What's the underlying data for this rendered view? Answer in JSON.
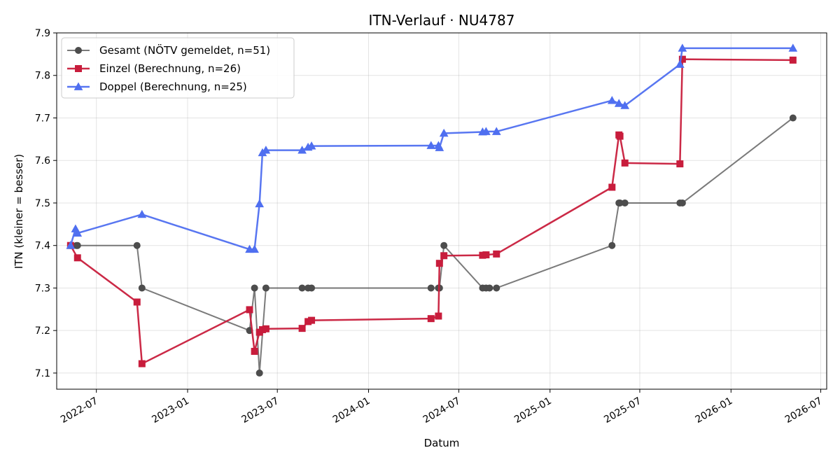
{
  "chart_data": {
    "type": "line",
    "title": "ITN-Verlauf · NU4787",
    "xlabel": "Datum",
    "ylabel": "ITN  (kleiner = besser)",
    "x_axis": "date",
    "xlim": [
      "2022-04-12",
      "2026-07-13"
    ],
    "ylim": [
      7.062,
      7.9
    ],
    "x_ticks": [
      "2022-07-01",
      "2023-01-01",
      "2023-07-01",
      "2024-01-01",
      "2024-07-01",
      "2025-01-01",
      "2025-07-01",
      "2026-01-01",
      "2026-07-01"
    ],
    "x_tick_labels": [
      "2022-07",
      "2023-01",
      "2023-07",
      "2024-01",
      "2024-07",
      "2025-01",
      "2025-07",
      "2026-01",
      "2026-07"
    ],
    "y_ticks": [
      7.1,
      7.2,
      7.3,
      7.4,
      7.5,
      7.6,
      7.7,
      7.8,
      7.9
    ],
    "y_tick_labels": [
      "7.1",
      "7.2",
      "7.3",
      "7.4",
      "7.5",
      "7.6",
      "7.7",
      "7.8",
      "7.9"
    ],
    "grid": true,
    "legend_position": "upper-left",
    "series": [
      {
        "name": "Gesamt (NÖTV gemeldet, n=51)",
        "color": "#4d4d4d",
        "marker": "circle",
        "x": [
          "2022-05-10",
          "2022-05-22",
          "2022-05-24",
          "2022-09-21",
          "2022-10-01",
          "2023-05-06",
          "2023-05-16",
          "2023-05-26",
          "2023-06-08",
          "2023-08-20",
          "2023-09-01",
          "2023-09-08",
          "2024-05-06",
          "2024-05-21",
          "2024-05-23",
          "2024-06-01",
          "2024-08-18",
          "2024-08-25",
          "2024-09-01",
          "2024-09-15",
          "2025-05-06",
          "2025-05-20",
          "2025-05-22",
          "2025-06-01",
          "2025-09-20",
          "2025-09-25",
          "2026-05-06"
        ],
        "y": [
          7.4,
          7.4,
          7.4,
          7.4,
          7.3,
          7.2,
          7.3,
          7.1,
          7.3,
          7.3,
          7.3,
          7.3,
          7.3,
          7.3,
          7.3,
          7.4,
          7.3,
          7.3,
          7.3,
          7.3,
          7.4,
          7.5,
          7.5,
          7.5,
          7.5,
          7.5,
          7.7
        ]
      },
      {
        "name": "Einzel (Berechnung, n=26)",
        "color": "#c81d3c",
        "marker": "square",
        "x": [
          "2022-05-10",
          "2022-05-24",
          "2022-09-21",
          "2022-10-01",
          "2023-05-06",
          "2023-05-16",
          "2023-05-26",
          "2023-06-01",
          "2023-06-08",
          "2023-08-20",
          "2023-09-01",
          "2023-09-08",
          "2024-05-06",
          "2024-05-21",
          "2024-05-23",
          "2024-06-01",
          "2024-08-18",
          "2024-08-25",
          "2024-09-15",
          "2025-05-06",
          "2025-05-20",
          "2025-05-22",
          "2025-06-01",
          "2025-09-20",
          "2025-09-25",
          "2026-05-06"
        ],
        "y": [
          7.4,
          7.371,
          7.267,
          7.122,
          7.249,
          7.151,
          7.196,
          7.202,
          7.204,
          7.205,
          7.221,
          7.224,
          7.228,
          7.234,
          7.358,
          7.376,
          7.377,
          7.378,
          7.38,
          7.537,
          7.66,
          7.657,
          7.594,
          7.592,
          7.838,
          7.836
        ]
      },
      {
        "name": "Doppel (Berechnung, n=25)",
        "color": "#4f6ff0",
        "marker": "triangle",
        "x": [
          "2022-05-10",
          "2022-05-20",
          "2022-05-24",
          "2022-10-01",
          "2023-05-06",
          "2023-05-16",
          "2023-05-26",
          "2023-06-01",
          "2023-06-08",
          "2023-08-20",
          "2023-09-01",
          "2023-09-08",
          "2024-05-06",
          "2024-05-21",
          "2024-05-23",
          "2024-06-01",
          "2024-08-18",
          "2024-08-25",
          "2024-09-15",
          "2025-05-06",
          "2025-05-20",
          "2025-06-01",
          "2025-09-20",
          "2025-09-25",
          "2026-05-06"
        ],
        "y": [
          7.4,
          7.439,
          7.429,
          7.473,
          7.391,
          7.391,
          7.498,
          7.618,
          7.624,
          7.624,
          7.631,
          7.634,
          7.635,
          7.635,
          7.63,
          7.664,
          7.667,
          7.668,
          7.668,
          7.741,
          7.734,
          7.729,
          7.826,
          7.864,
          7.864
        ]
      }
    ]
  }
}
